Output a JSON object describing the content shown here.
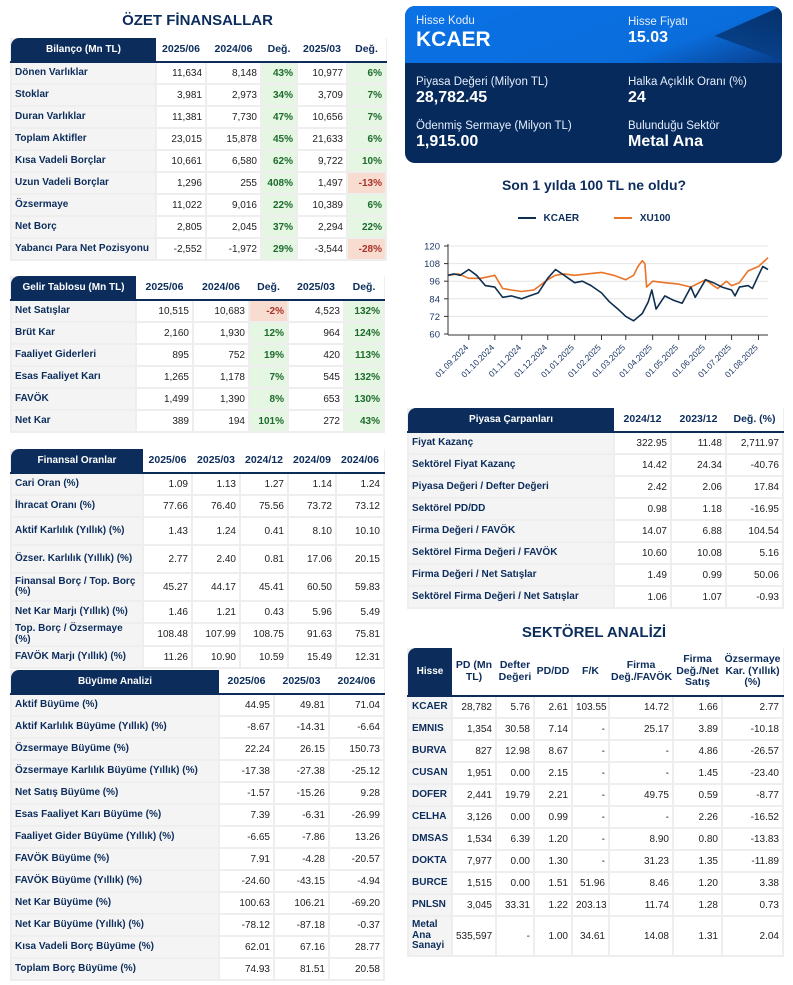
{
  "left_title": "ÖZET FİNANSALLAR",
  "bilanco": {
    "header": "Bilanço (Mn TL)",
    "columns": [
      "2025/06",
      "2024/06",
      "Değ.",
      "2025/03",
      "Değ."
    ],
    "change_columns": [
      2,
      4
    ],
    "rows": [
      {
        "label": "Dönen Varlıklar",
        "values": [
          "11,634",
          "8,148",
          "43%",
          "10,977",
          "6%"
        ]
      },
      {
        "label": "Stoklar",
        "values": [
          "3,981",
          "2,973",
          "34%",
          "3,709",
          "7%"
        ]
      },
      {
        "label": "Duran Varlıklar",
        "values": [
          "11,381",
          "7,730",
          "47%",
          "10,656",
          "7%"
        ]
      },
      {
        "label": "Toplam Aktifler",
        "values": [
          "23,015",
          "15,878",
          "45%",
          "21,633",
          "6%"
        ]
      },
      {
        "label": "Kısa Vadeli Borçlar",
        "values": [
          "10,661",
          "6,580",
          "62%",
          "9,722",
          "10%"
        ]
      },
      {
        "label": "Uzun Vadeli Borçlar",
        "values": [
          "1,296",
          "255",
          "408%",
          "1,497",
          "-13%"
        ]
      },
      {
        "label": "Özsermaye",
        "values": [
          "11,022",
          "9,016",
          "22%",
          "10,389",
          "6%"
        ]
      },
      {
        "label": "Net Borç",
        "values": [
          "2,805",
          "2,045",
          "37%",
          "2,294",
          "22%"
        ]
      },
      {
        "label": "Yabancı Para Net Pozisyonu",
        "values": [
          "-2,552",
          "-1,972",
          "29%",
          "-3,544",
          "-28%"
        ]
      }
    ]
  },
  "gelir": {
    "header": "Gelir Tablosu (Mn TL)",
    "columns": [
      "2025/06",
      "2024/06",
      "Değ.",
      "2025/03",
      "Değ."
    ],
    "change_columns": [
      2,
      4
    ],
    "rows": [
      {
        "label": "Net Satışlar",
        "values": [
          "10,515",
          "10,683",
          "-2%",
          "4,523",
          "132%"
        ]
      },
      {
        "label": "Brüt Kar",
        "values": [
          "2,160",
          "1,930",
          "12%",
          "964",
          "124%"
        ]
      },
      {
        "label": "Faaliyet Giderleri",
        "values": [
          "895",
          "752",
          "19%",
          "420",
          "113%"
        ]
      },
      {
        "label": "Esas Faaliyet Karı",
        "values": [
          "1,265",
          "1,178",
          "7%",
          "545",
          "132%"
        ]
      },
      {
        "label": "FAVÖK",
        "values": [
          "1,499",
          "1,390",
          "8%",
          "653",
          "130%"
        ]
      },
      {
        "label": "Net Kar",
        "values": [
          "389",
          "194",
          "101%",
          "272",
          "43%"
        ]
      }
    ]
  },
  "oranlar": {
    "header": "Finansal Oranlar",
    "columns": [
      "2025/06",
      "2025/03",
      "2024/12",
      "2024/09",
      "2024/06"
    ],
    "change_columns": [],
    "rows": [
      {
        "label": "Cari Oran (%)",
        "values": [
          "1.09",
          "1.13",
          "1.27",
          "1.14",
          "1.24"
        ]
      },
      {
        "label": "İhracat Oranı (%)",
        "values": [
          "77.66",
          "76.40",
          "75.56",
          "73.72",
          "73.12"
        ]
      },
      {
        "label": "Aktif Karlılık (Yıllık) (%)",
        "values": [
          "1.43",
          "1.24",
          "0.41",
          "8.10",
          "10.10"
        ]
      },
      {
        "label": "Özser. Karlılık (Yıllık) (%)",
        "values": [
          "2.77",
          "2.40",
          "0.81",
          "17.06",
          "20.15"
        ]
      },
      {
        "label": "Finansal Borç / Top. Borç (%)",
        "values": [
          "45.27",
          "44.17",
          "45.41",
          "60.50",
          "59.83"
        ]
      },
      {
        "label": "Net Kar Marjı (Yıllık) (%)",
        "values": [
          "1.46",
          "1.21",
          "0.43",
          "5.96",
          "5.49"
        ]
      },
      {
        "label": "Top. Borç / Özsermaye (%)",
        "values": [
          "108.48",
          "107.99",
          "108.75",
          "91.63",
          "75.81"
        ]
      },
      {
        "label": "FAVÖK Marjı (Yıllık) (%)",
        "values": [
          "11.26",
          "10.90",
          "10.59",
          "15.49",
          "12.31"
        ]
      }
    ]
  },
  "buyume": {
    "header": "Büyüme Analizi",
    "columns": [
      "2025/06",
      "2025/03",
      "2024/06"
    ],
    "change_columns": [],
    "rows": [
      {
        "label": "Aktif Büyüme (%)",
        "values": [
          "44.95",
          "49.81",
          "71.04"
        ]
      },
      {
        "label": "Aktif Karlılık Büyüme (Yıllık) (%)",
        "values": [
          "-8.67",
          "-14.31",
          "-6.64"
        ]
      },
      {
        "label": "Özsermaye Büyüme (%)",
        "values": [
          "22.24",
          "26.15",
          "150.73"
        ]
      },
      {
        "label": "Özsermaye Karlılık Büyüme (Yıllık) (%)",
        "values": [
          "-17.38",
          "-27.38",
          "-25.12"
        ]
      },
      {
        "label": "Net Satış Büyüme (%)",
        "values": [
          "-1.57",
          "-15.26",
          "9.28"
        ]
      },
      {
        "label": "Esas Faaliyet Karı Büyüme (%)",
        "values": [
          "7.39",
          "-6.31",
          "-26.99"
        ]
      },
      {
        "label": "Faaliyet Gider Büyüme (Yıllık) (%)",
        "values": [
          "-6.65",
          "-7.86",
          "13.26"
        ]
      },
      {
        "label": "FAVÖK Büyüme (%)",
        "values": [
          "7.91",
          "-4.28",
          "-20.57"
        ]
      },
      {
        "label": "FAVÖK Büyüme (Yıllık) (%)",
        "values": [
          "-24.60",
          "-43.15",
          "-4.94"
        ]
      },
      {
        "label": "Net Kar Büyüme (%)",
        "values": [
          "100.63",
          "106.21",
          "-69.20"
        ]
      },
      {
        "label": "Net Kar Büyüme (Yıllık) (%)",
        "values": [
          "-78.12",
          "-87.18",
          "-0.37"
        ]
      },
      {
        "label": "Kısa Vadeli Borç Büyüme (%)",
        "values": [
          "62.01",
          "67.16",
          "28.77"
        ]
      },
      {
        "label": "Toplam Borç Büyüme (%)",
        "values": [
          "74.93",
          "81.51",
          "20.58"
        ]
      }
    ]
  },
  "card": {
    "hisse_kodu_label": "Hisse Kodu",
    "hisse_kodu": "KCAER",
    "hisse_fiyati_label": "Hisse Fiyatı",
    "hisse_fiyati": "15.03",
    "piyasa_degeri_label": "Piyasa Değeri (Milyon TL)",
    "piyasa_degeri": "28,782.45",
    "halka_aciklik_label": "Halka Açıklık Oranı (%)",
    "halka_aciklik": "24",
    "odenmis_sermaye_label": "Ödenmiş Sermaye (Milyon TL)",
    "odenmis_sermaye": "1,915.00",
    "sektor_label": "Bulunduğu Sektör",
    "sektor": "Metal Ana"
  },
  "chart_data": {
    "type": "line",
    "title": "Son 1 yılda 100 TL ne oldu?",
    "xlim": [
      "08.08.2024",
      "12.08.2025"
    ],
    "ylim": [
      60,
      120
    ],
    "yticks": [
      60,
      72,
      84,
      96,
      108,
      120
    ],
    "xticks": [
      "01.09.2024",
      "01.10.2024",
      "01.11.2024",
      "01.12.2024",
      "01.01.2025",
      "01.02.2025",
      "01.03.2025",
      "01.04.2025",
      "01.05.2025",
      "01.06.2025",
      "01.07.2025",
      "01.08.2025"
    ],
    "grid": true,
    "legend_position": "top",
    "series": [
      {
        "name": "KCAER",
        "color": "#0e2f50",
        "points": [
          [
            "08.08.2024",
            100
          ],
          [
            "15.08.2024",
            101
          ],
          [
            "22.08.2024",
            100
          ],
          [
            "01.09.2024",
            104
          ],
          [
            "10.09.2024",
            100
          ],
          [
            "20.09.2024",
            93
          ],
          [
            "01.10.2024",
            92
          ],
          [
            "10.10.2024",
            85
          ],
          [
            "20.10.2024",
            86
          ],
          [
            "01.11.2024",
            84
          ],
          [
            "10.11.2024",
            86
          ],
          [
            "20.11.2024",
            88
          ],
          [
            "01.12.2024",
            98
          ],
          [
            "10.12.2024",
            104
          ],
          [
            "20.12.2024",
            100
          ],
          [
            "01.01.2025",
            95
          ],
          [
            "10.01.2025",
            96
          ],
          [
            "20.01.2025",
            93
          ],
          [
            "01.02.2025",
            88
          ],
          [
            "10.02.2025",
            82
          ],
          [
            "20.02.2025",
            77
          ],
          [
            "01.03.2025",
            72
          ],
          [
            "10.03.2025",
            69
          ],
          [
            "20.03.2025",
            74
          ],
          [
            "27.03.2025",
            82
          ],
          [
            "31.03.2025",
            90
          ],
          [
            "05.04.2025",
            77
          ],
          [
            "15.04.2025",
            86
          ],
          [
            "25.04.2025",
            83
          ],
          [
            "05.05.2025",
            81
          ],
          [
            "15.05.2025",
            92
          ],
          [
            "20.05.2025",
            85
          ],
          [
            "01.06.2025",
            97
          ],
          [
            "10.06.2025",
            95
          ],
          [
            "20.06.2025",
            92
          ],
          [
            "01.07.2025",
            90
          ],
          [
            "05.07.2025",
            86
          ],
          [
            "10.07.2025",
            92
          ],
          [
            "20.07.2025",
            93
          ],
          [
            "25.07.2025",
            91
          ],
          [
            "01.08.2025",
            100
          ],
          [
            "06.08.2025",
            106
          ],
          [
            "12.08.2025",
            104
          ]
        ]
      },
      {
        "name": "XU100",
        "color": "#ea7326",
        "points": [
          [
            "08.08.2024",
            100
          ],
          [
            "20.08.2024",
            101
          ],
          [
            "01.09.2024",
            98
          ],
          [
            "15.09.2024",
            98
          ],
          [
            "01.10.2024",
            100
          ],
          [
            "10.10.2024",
            91
          ],
          [
            "20.10.2024",
            90
          ],
          [
            "01.11.2024",
            89
          ],
          [
            "15.11.2024",
            90
          ],
          [
            "01.12.2024",
            97
          ],
          [
            "10.12.2024",
            100
          ],
          [
            "20.12.2024",
            101
          ],
          [
            "01.01.2025",
            100
          ],
          [
            "15.01.2025",
            101
          ],
          [
            "01.02.2025",
            102
          ],
          [
            "15.02.2025",
            100
          ],
          [
            "01.03.2025",
            97
          ],
          [
            "10.03.2025",
            100
          ],
          [
            "15.03.2025",
            106
          ],
          [
            "20.03.2025",
            110
          ],
          [
            "23.03.2025",
            108
          ],
          [
            "25.03.2025",
            92
          ],
          [
            "01.04.2025",
            96
          ],
          [
            "15.04.2025",
            95
          ],
          [
            "01.05.2025",
            94
          ],
          [
            "15.05.2025",
            92
          ],
          [
            "01.06.2025",
            97
          ],
          [
            "10.06.2025",
            93
          ],
          [
            "15.06.2025",
            91
          ],
          [
            "25.06.2025",
            96
          ],
          [
            "01.07.2025",
            93
          ],
          [
            "10.07.2025",
            95
          ],
          [
            "20.07.2025",
            103
          ],
          [
            "01.08.2025",
            106
          ],
          [
            "12.08.2025",
            112
          ]
        ]
      }
    ]
  },
  "piyasa": {
    "header": "Piyasa Çarpanları",
    "columns": [
      "2024/12",
      "2023/12",
      "Değ. (%)"
    ],
    "change_columns": [],
    "rows": [
      {
        "label": "Fiyat Kazanç",
        "values": [
          "322.95",
          "11.48",
          "2,711.97"
        ]
      },
      {
        "label": "Sektörel Fiyat Kazanç",
        "values": [
          "14.42",
          "24.34",
          "-40.76"
        ]
      },
      {
        "label": "Piyasa Değeri / Defter Değeri",
        "values": [
          "2.42",
          "2.06",
          "17.84"
        ]
      },
      {
        "label": "Sektörel PD/DD",
        "values": [
          "0.98",
          "1.18",
          "-16.95"
        ]
      },
      {
        "label": "Firma Değeri / FAVÖK",
        "values": [
          "14.07",
          "6.88",
          "104.54"
        ]
      },
      {
        "label": "Sektörel Firma Değeri / FAVÖK",
        "values": [
          "10.60",
          "10.08",
          "5.16"
        ]
      },
      {
        "label": "Firma Değeri / Net Satışlar",
        "values": [
          "1.49",
          "0.99",
          "50.06"
        ]
      },
      {
        "label": "Sektörel Firma Değeri / Net Satışlar",
        "values": [
          "1.06",
          "1.07",
          "-0.93"
        ]
      }
    ]
  },
  "sektor_title": "SEKTÖREL ANALİZİ",
  "sektor": {
    "header": "Hisse",
    "columns": [
      "PD (Mn TL)",
      "Defter Değeri",
      "PD/DD",
      "F/K",
      "Firma Değ./FAVÖK",
      "Firma Değ./Net Satış",
      "Özsermaye Kar. (Yıllık) (%)"
    ],
    "change_columns": [],
    "rows": [
      {
        "label": "KCAER",
        "values": [
          "28,782",
          "5.76",
          "2.61",
          "103.55",
          "14.72",
          "1.66",
          "2.77"
        ]
      },
      {
        "label": "EMNIS",
        "values": [
          "1,354",
          "30.58",
          "7.14",
          "-",
          "25.17",
          "3.89",
          "-10.18"
        ]
      },
      {
        "label": "BURVA",
        "values": [
          "827",
          "12.98",
          "8.67",
          "-",
          "-",
          "4.86",
          "-26.57"
        ]
      },
      {
        "label": "CUSAN",
        "values": [
          "1,951",
          "0.00",
          "2.15",
          "-",
          "-",
          "1.45",
          "-23.40"
        ]
      },
      {
        "label": "DOFER",
        "values": [
          "2,441",
          "19.79",
          "2.21",
          "-",
          "49.75",
          "0.59",
          "-8.77"
        ]
      },
      {
        "label": "CELHA",
        "values": [
          "3,126",
          "0.00",
          "0.99",
          "-",
          "-",
          "2.26",
          "-16.52"
        ]
      },
      {
        "label": "DMSAS",
        "values": [
          "1,534",
          "6.39",
          "1.20",
          "-",
          "8.90",
          "0.80",
          "-13.83"
        ]
      },
      {
        "label": "DOKTA",
        "values": [
          "7,977",
          "0.00",
          "1.30",
          "-",
          "31.23",
          "1.35",
          "-11.89"
        ]
      },
      {
        "label": "BURCE",
        "values": [
          "1,515",
          "0.00",
          "1.51",
          "51.96",
          "8.46",
          "1.20",
          "3.38"
        ]
      },
      {
        "label": "PNLSN",
        "values": [
          "3,045",
          "33.31",
          "1.22",
          "203.13",
          "11.74",
          "1.28",
          "0.73"
        ]
      },
      {
        "label": "Metal Ana Sanayi",
        "values": [
          "535,597",
          "-",
          "1.00",
          "34.61",
          "14.08",
          "1.31",
          "2.04"
        ]
      }
    ]
  }
}
